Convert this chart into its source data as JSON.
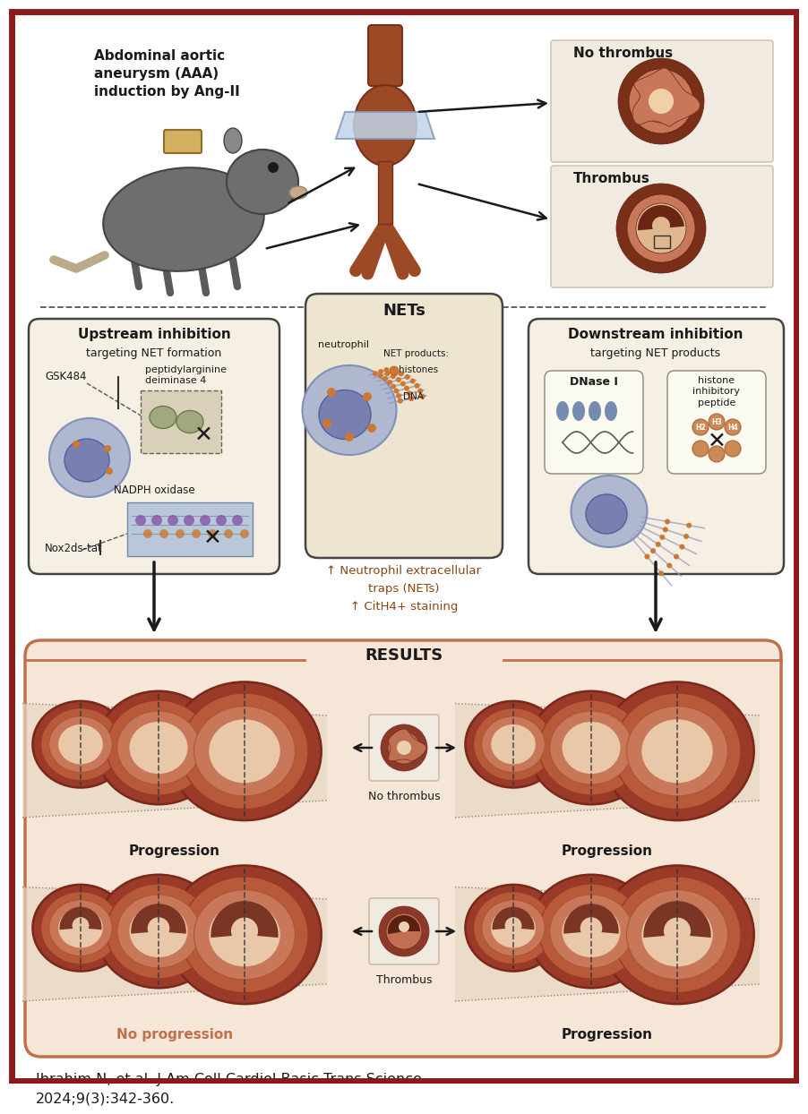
{
  "border_color": "#8B1A1A",
  "border_linewidth": 5,
  "background_color": "#ffffff",
  "citation_text": "Ibrahim N, et al. J Am Coll Cardiol Basic Trans Science.\n2024;9(3):342-360.",
  "title_results": "RESULTS",
  "results_box_color": "#C0704A",
  "results_bg": "#F5E6D8",
  "no_progression_color": "#C0704A",
  "upstream_title": "Upstream inhibition",
  "upstream_subtitle": "targeting NET formation",
  "downstream_title": "Downstream inhibition",
  "downstream_subtitle": "targeting NET products",
  "nets_title": "NETs",
  "no_thrombus_label": "No thrombus",
  "thrombus_label": "Thrombus",
  "progression_label": "Progression",
  "no_progression_label": "No progression",
  "vessel_outer_color": "#A84030",
  "vessel_mid_color": "#C87858",
  "vessel_inner_color": "#D8A080",
  "vessel_lumen_color": "#E8C8A8",
  "thrombus_fill": "#7B3525",
  "dashed_line_color": "#333333",
  "box_outline_color": "#333333",
  "upstream_box_bg": "#F5EFE4",
  "downstream_box_bg": "#F5EFE4",
  "nets_box_bg": "#EEE5D0",
  "arrow_color": "#1a1a1a",
  "up_arrow_color": "#8B4513",
  "nets_text1": "↑ Neutrophil extracellular",
  "nets_text2": "traps (NETs)",
  "nets_text3": "↑ CitH4+ staining",
  "gsk484": "GSK484",
  "peptidyl": "peptidylarginine\ndeiminase 4",
  "nadph": "NADPH oxidase",
  "nox2ds": "Nox2ds-tat",
  "dnase": "DNase I",
  "histone_inh": "histone\ninhibitory\npeptide",
  "neutrophil_label": "neutrophil",
  "net_products": "NET products:",
  "histones_label": "histones",
  "dna_label": "DNA",
  "aaa_label": "Abdominal aortic\naneurysm (AAA)\ninduction by Ang-II"
}
